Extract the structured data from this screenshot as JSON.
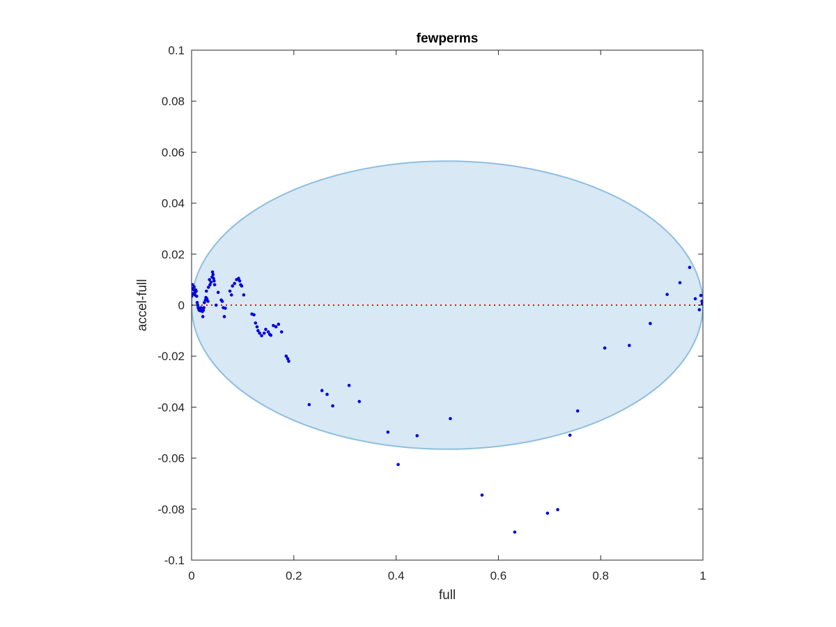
{
  "chart_data": {
    "type": "scatter",
    "title": "fewperms",
    "xlabel": "full",
    "ylabel": "accel-full",
    "xlim": [
      0,
      1
    ],
    "ylim": [
      -0.1,
      0.1
    ],
    "xticks": [
      "0",
      "0.2",
      "0.4",
      "0.6",
      "0.8",
      "1"
    ],
    "yticks": [
      "-0.1",
      "-0.08",
      "-0.06",
      "-0.04",
      "-0.02",
      "0",
      "0.02",
      "0.04",
      "0.06",
      "0.08",
      "0.1"
    ],
    "grid": false,
    "box": true,
    "ellipse": {
      "center": [
        0.5,
        0.0
      ],
      "semi_axes": [
        0.5,
        0.0565
      ],
      "fill": "#d8e8f4",
      "edge": "#8dbee0"
    },
    "reference_line": {
      "y": 0,
      "color": "#ff0000",
      "style": "dotted"
    },
    "marker_color": "#0000dd",
    "points": [
      [
        0.0,
        0.0035
      ],
      [
        0.001,
        0.0065
      ],
      [
        0.002,
        0.008
      ],
      [
        0.003,
        0.0045
      ],
      [
        0.004,
        0.006
      ],
      [
        0.005,
        0.0072
      ],
      [
        0.006,
        0.004
      ],
      [
        0.007,
        0.005
      ],
      [
        0.008,
        0.006
      ],
      [
        0.009,
        0.0055
      ],
      [
        0.01,
        0.0035
      ],
      [
        0.011,
        0.001
      ],
      [
        0.012,
        0.0
      ],
      [
        0.013,
        -0.001
      ],
      [
        0.014,
        -0.0015
      ],
      [
        0.015,
        -0.002
      ],
      [
        0.016,
        -0.0018
      ],
      [
        0.017,
        -0.0022
      ],
      [
        0.018,
        -0.001
      ],
      [
        0.019,
        -0.002
      ],
      [
        0.02,
        -0.0015
      ],
      [
        0.021,
        -0.0025
      ],
      [
        0.022,
        -0.0045
      ],
      [
        0.023,
        -0.002
      ],
      [
        0.024,
        -0.001
      ],
      [
        0.025,
        0.001
      ],
      [
        0.027,
        0.002
      ],
      [
        0.028,
        0.003
      ],
      [
        0.029,
        0.0055
      ],
      [
        0.03,
        0.0025
      ],
      [
        0.032,
        0.0015
      ],
      [
        0.033,
        0.007
      ],
      [
        0.035,
        0.01
      ],
      [
        0.036,
        0.008
      ],
      [
        0.038,
        0.009
      ],
      [
        0.04,
        0.011
      ],
      [
        0.041,
        0.013
      ],
      [
        0.042,
        0.012
      ],
      [
        0.043,
        0.0105
      ],
      [
        0.044,
        0.0095
      ],
      [
        0.045,
        0.008
      ],
      [
        0.048,
        0.0
      ],
      [
        0.052,
        0.005
      ],
      [
        0.058,
        0.002
      ],
      [
        0.06,
        0.0015
      ],
      [
        0.062,
        -0.001
      ],
      [
        0.064,
        -0.0045
      ],
      [
        0.066,
        -0.0012
      ],
      [
        0.075,
        0.0055
      ],
      [
        0.078,
        0.004
      ],
      [
        0.08,
        0.0075
      ],
      [
        0.084,
        0.0085
      ],
      [
        0.088,
        0.01
      ],
      [
        0.092,
        0.0105
      ],
      [
        0.094,
        0.0095
      ],
      [
        0.096,
        0.008
      ],
      [
        0.098,
        0.0075
      ],
      [
        0.102,
        0.004
      ],
      [
        0.118,
        -0.0035
      ],
      [
        0.122,
        -0.0038
      ],
      [
        0.125,
        -0.007
      ],
      [
        0.128,
        -0.0085
      ],
      [
        0.13,
        -0.01
      ],
      [
        0.133,
        -0.011
      ],
      [
        0.137,
        -0.012
      ],
      [
        0.142,
        -0.011
      ],
      [
        0.145,
        -0.0095
      ],
      [
        0.15,
        -0.0105
      ],
      [
        0.153,
        -0.0115
      ],
      [
        0.155,
        -0.0118
      ],
      [
        0.16,
        -0.008
      ],
      [
        0.165,
        -0.0085
      ],
      [
        0.17,
        -0.0075
      ],
      [
        0.176,
        -0.0105
      ],
      [
        0.185,
        -0.02
      ],
      [
        0.188,
        -0.021
      ],
      [
        0.19,
        -0.022
      ],
      [
        0.23,
        -0.039
      ],
      [
        0.255,
        -0.0335
      ],
      [
        0.265,
        -0.035
      ],
      [
        0.276,
        -0.0395
      ],
      [
        0.308,
        -0.0315
      ],
      [
        0.328,
        -0.0378
      ],
      [
        0.384,
        -0.0498
      ],
      [
        0.404,
        -0.0625
      ],
      [
        0.441,
        -0.0512
      ],
      [
        0.506,
        -0.0445
      ],
      [
        0.568,
        -0.0745
      ],
      [
        0.632,
        -0.089
      ],
      [
        0.696,
        -0.0816
      ],
      [
        0.716,
        -0.0802
      ],
      [
        0.74,
        -0.051
      ],
      [
        0.755,
        -0.0415
      ],
      [
        0.808,
        -0.0168
      ],
      [
        0.856,
        -0.0158
      ],
      [
        0.897,
        -0.0072
      ],
      [
        0.93,
        0.0042
      ],
      [
        0.955,
        0.0088
      ],
      [
        0.974,
        0.0148
      ],
      [
        0.985,
        0.0025
      ],
      [
        0.993,
        -0.0018
      ],
      [
        0.996,
        0.0038
      ],
      [
        0.998,
        0.0015
      ],
      [
        0.999,
        0.0005
      ],
      [
        1.0,
        0.001
      ]
    ]
  }
}
